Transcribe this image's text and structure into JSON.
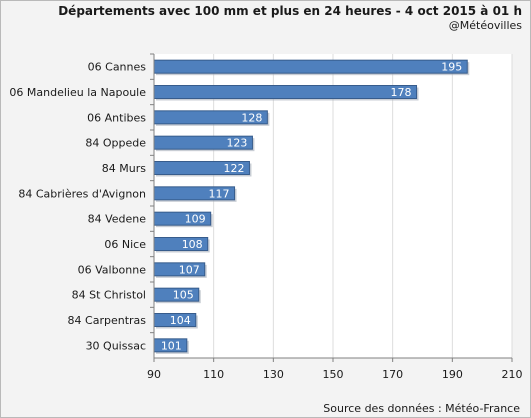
{
  "chart_data": {
    "type": "bar",
    "orientation": "horizontal",
    "title": "Départements avec 100 mm et plus en 24 heures - 4 oct 2015 à 01 h",
    "subtitle": "@Météovilles",
    "source": "Source des données : Météo-France",
    "categories": [
      "06 Cannes",
      "06 Mandelieu la Napoule",
      "06 Antibes",
      "84 Oppede",
      "84 Murs",
      "84 Cabrières d'Avignon",
      "84 Vedene",
      "06 Nice",
      "06 Valbonne",
      "84 St Christol",
      "84 Carpentras",
      "30 Quissac"
    ],
    "values": [
      195,
      178,
      128,
      123,
      122,
      117,
      109,
      108,
      107,
      105,
      104,
      101
    ],
    "xlim": [
      90,
      210
    ],
    "xticks": [
      90,
      110,
      130,
      150,
      170,
      190,
      210
    ],
    "grid": "vertical",
    "bar_color": "#4f80bd",
    "bar_edge_color": "#375c8c",
    "plot_background": "#ffffff",
    "figure_background": "#f3f3f3",
    "grid_color": "#dddddd"
  }
}
